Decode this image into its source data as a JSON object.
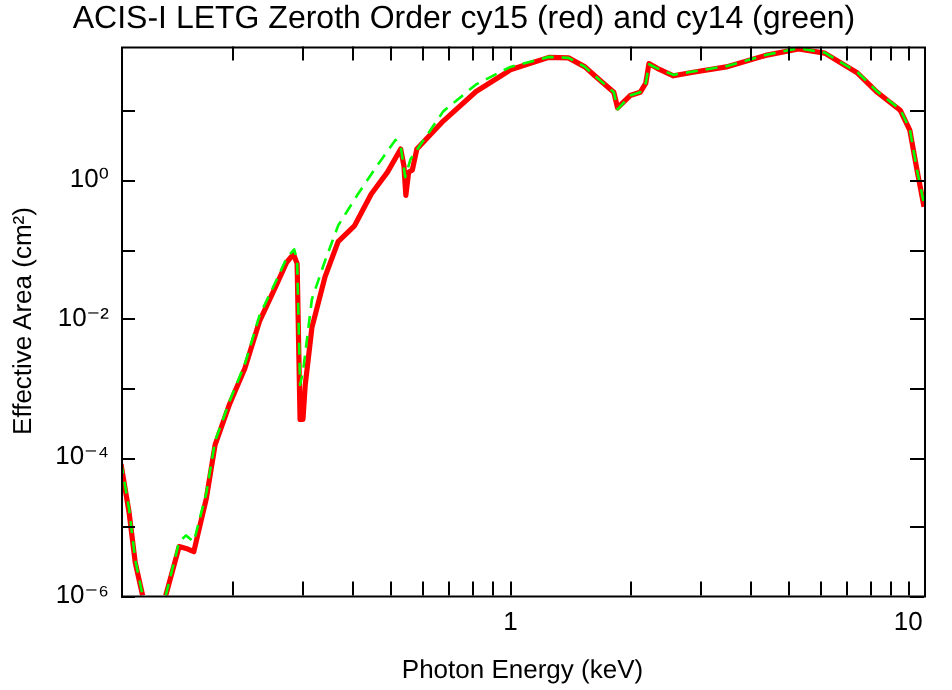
{
  "chart_data": {
    "type": "line",
    "title": "ACIS-I LETG Zeroth Order cy15 (red) and cy14 (green)",
    "xlabel": "Photon Energy (keV)",
    "ylabel": "Effective Area (cm²)",
    "log": "xy",
    "grid": false,
    "legend": false,
    "xlim": [
      0.105,
      10.96
    ],
    "ylim": [
      1e-06,
      85
    ],
    "xticks": [
      {
        "value": 0.2,
        "label": null
      },
      {
        "value": 0.3,
        "label": null
      },
      {
        "value": 0.4,
        "label": null
      },
      {
        "value": 0.5,
        "label": null
      },
      {
        "value": 0.6,
        "label": null
      },
      {
        "value": 0.7,
        "label": null
      },
      {
        "value": 0.8,
        "label": null
      },
      {
        "value": 0.9,
        "label": null
      },
      1,
      {
        "value": 2,
        "label": null
      },
      {
        "value": 3,
        "label": null
      },
      {
        "value": 4,
        "label": null
      },
      {
        "value": 5,
        "label": null
      },
      {
        "value": 6,
        "label": null
      },
      {
        "value": 7,
        "label": null
      },
      {
        "value": 8,
        "label": null
      },
      {
        "value": 9,
        "label": null
      },
      10
    ],
    "yticks": [
      {
        "value": 1e-06,
        "label": "10⁻⁶"
      },
      {
        "value": 1e-05,
        "label": null
      },
      {
        "value": 0.0001,
        "label": "10⁻⁴"
      },
      {
        "value": 0.001,
        "label": null
      },
      {
        "value": 0.01,
        "label": "10⁻²"
      },
      {
        "value": 0.1,
        "label": null
      },
      {
        "value": 1,
        "label": "10⁰"
      },
      {
        "value": 10,
        "label": null
      }
    ],
    "series": [
      {
        "color": "#ff0000",
        "line_style": "solid",
        "x": [
          0.105,
          0.11,
          0.114,
          0.119,
          0.127,
          0.136,
          0.147,
          0.153,
          0.16,
          0.172,
          0.181,
          0.197,
          0.215,
          0.234,
          0.257,
          0.274,
          0.285,
          0.291,
          0.296,
          0.301,
          0.305,
          0.317,
          0.342,
          0.369,
          0.406,
          0.447,
          0.491,
          0.53,
          0.54,
          0.546,
          0.555,
          0.567,
          0.582,
          0.678,
          0.82,
          1.0,
          1.25,
          1.4,
          1.54,
          1.63,
          1.82,
          1.86,
          2.0,
          2.12,
          2.19,
          2.23,
          2.34,
          2.57,
          2.88,
          3.49,
          4.38,
          5.3,
          6.17,
          7.46,
          8.36,
          9.55,
          10.1,
          10.5,
          10.96
        ],
        "values": [
          7.9e-05,
          1.6e-05,
          3e-06,
          1e-06,
          null,
          1e-06,
          5.1e-06,
          4.8e-06,
          4.3e-06,
          2.5e-05,
          0.00015,
          0.00059,
          0.0019,
          0.0091,
          0.029,
          0.065,
          0.085,
          0.062,
          0.00035,
          0.00035,
          0.0011,
          0.0074,
          0.04,
          0.129,
          0.22,
          0.63,
          1.3,
          2.8,
          1.6,
          0.6,
          1.3,
          1.4,
          2.8,
          7.1,
          19,
          39,
          59,
          58,
          43,
          32,
          18.5,
          11,
          16.6,
          18.5,
          25,
          48,
          41,
          32,
          36,
          43,
          63,
          78,
          68,
          35,
          18.5,
          10.2,
          5.2,
          1.5,
          0.41
        ]
      },
      {
        "color": "#00ff00",
        "line_style": "dashed",
        "x": [
          0.105,
          0.11,
          0.114,
          0.119,
          0.127,
          0.136,
          0.147,
          0.153,
          0.16,
          0.172,
          0.181,
          0.197,
          0.215,
          0.234,
          0.257,
          0.274,
          0.286,
          0.291,
          0.296,
          0.301,
          0.317,
          0.342,
          0.369,
          0.414,
          0.462,
          0.514,
          0.53,
          0.544,
          0.561,
          0.678,
          0.82,
          1.0,
          1.25,
          1.4,
          1.54,
          1.63,
          1.82,
          1.86,
          2.0,
          2.12,
          2.19,
          2.23,
          2.34,
          2.57,
          2.88,
          3.49,
          4.38,
          5.3,
          6.17,
          7.46,
          8.36,
          9.55,
          10.1,
          10.5,
          10.96
        ],
        "values": [
          8.5e-05,
          1.8e-05,
          3.3e-06,
          1e-06,
          null,
          1e-06,
          6e-06,
          7.4e-06,
          6e-06,
          3e-05,
          0.00017,
          0.00065,
          0.0022,
          0.011,
          0.034,
          0.075,
          0.1,
          0.07,
          0.0011,
          0.0017,
          0.019,
          0.068,
          0.22,
          0.63,
          1.6,
          3.8,
          3.1,
          1.1,
          2.0,
          9.8,
          24,
          43,
          60,
          58,
          43,
          32,
          18.5,
          10.5,
          16.6,
          18.5,
          25,
          47,
          41,
          33,
          37,
          44,
          64,
          80,
          69,
          36,
          19,
          10.5,
          5.4,
          1.5,
          0.45
        ]
      }
    ]
  }
}
